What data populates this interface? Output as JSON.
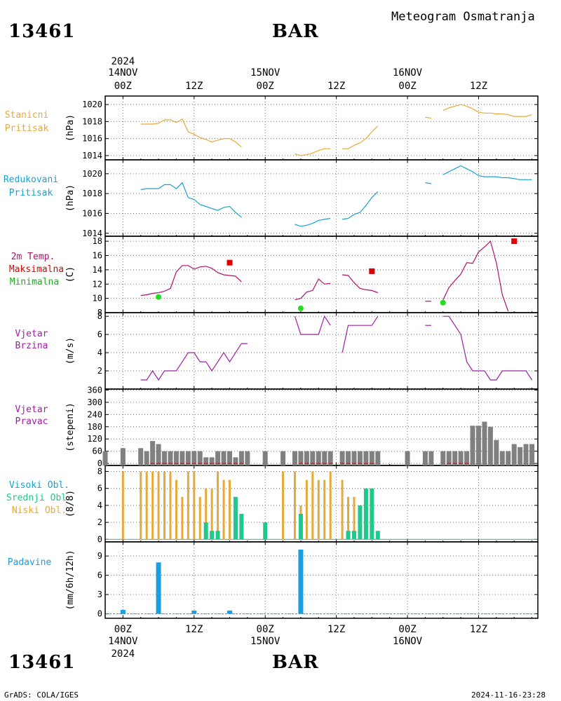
{
  "header": {
    "title": "Meteogram Osmatranja",
    "station_id": "13461",
    "station_name": "BAR",
    "footer_left": "GrADS: COLA/IGES",
    "footer_right": "2024-11-16-23:28"
  },
  "time_axis": {
    "year_label": "2024",
    "day_labels": [
      "14NOV",
      "15NOV",
      "16NOV"
    ],
    "hour_labels": [
      "00Z",
      "12Z",
      "00Z",
      "12Z",
      "00Z",
      "12Z"
    ]
  },
  "colors": {
    "staticni": "#e6a93a",
    "redukovani": "#1aa3d1",
    "temperature": "#b0106e",
    "max_marker": "#e00000",
    "min_marker": "#22dd22",
    "wind_speed": "#a020a0",
    "wind_dir": "#a020a0",
    "visoki": "#1aa3d1",
    "srednji": "#20c88a",
    "niski": "#e6a93a",
    "padavine": "#1a9fe0",
    "bars_gray": "#808080",
    "calm_dots": "#c03030"
  },
  "panels": {
    "p1": {
      "label1": "Stanicni",
      "label2": "Pritisak",
      "unit": "(hPa)",
      "ticks": [
        "1014",
        "1016",
        "1018",
        "1020"
      ]
    },
    "p2": {
      "label1": "Redukovani",
      "label2": "Pritisak",
      "unit": "(hPa)",
      "ticks": [
        "1014",
        "1016",
        "1018",
        "1020"
      ]
    },
    "p3": {
      "label1": "2m Temp.",
      "label2": "Maksimalna",
      "label3": "Minimalna",
      "unit": "(C)",
      "ticks": [
        "8",
        "10",
        "12",
        "14",
        "16",
        "18"
      ]
    },
    "p4": {
      "label1": "Vjetar",
      "label2": "Brzina",
      "unit": "(m/s)",
      "ticks": [
        "2",
        "4",
        "6",
        "8"
      ]
    },
    "p5": {
      "label1": "Vjetar",
      "label2": "Pravac",
      "unit": "(stepeni)",
      "ticks": [
        "0",
        "60",
        "120",
        "180",
        "240",
        "300",
        "360"
      ]
    },
    "p6": {
      "label1": "Visoki Obl.",
      "label2": "Srednji Obl.",
      "label3": "Niski Obl.",
      "unit": "(8/8)",
      "ticks": [
        "0",
        "2",
        "4",
        "6",
        "8"
      ]
    },
    "p7": {
      "label1": "Padavine",
      "unit": "(mm/6h/12h)",
      "ticks": [
        "0",
        "3",
        "6",
        "9"
      ]
    }
  },
  "chart_data": {
    "type": "line",
    "x_unit": "hours since 14NOV 00Z",
    "xlim": [
      -3,
      70
    ],
    "staticni_pritisak": [
      [
        [
          3,
          1017.7
        ],
        [
          4,
          1017.7
        ],
        [
          5,
          1017.7
        ],
        [
          6,
          1017.8
        ],
        [
          7,
          1018.2
        ],
        [
          8,
          1018.2
        ],
        [
          9,
          1017.9
        ],
        [
          10,
          1018.3
        ],
        [
          11,
          1016.8
        ],
        [
          12,
          1016.5
        ],
        [
          13,
          1016.1
        ],
        [
          14,
          1015.9
        ],
        [
          15,
          1015.6
        ],
        [
          16,
          1015.8
        ],
        [
          17,
          1016.0
        ],
        [
          18,
          1016.0
        ],
        [
          19,
          1015.6
        ],
        [
          20,
          1015.0
        ]
      ],
      [
        [
          29,
          1014.2
        ],
        [
          30,
          1014.0
        ],
        [
          31,
          1014.1
        ],
        [
          32,
          1014.3
        ],
        [
          33,
          1014.6
        ],
        [
          34,
          1014.8
        ],
        [
          35,
          1014.8
        ]
      ],
      [
        [
          37,
          1014.8
        ],
        [
          38,
          1014.8
        ],
        [
          39,
          1015.2
        ],
        [
          40,
          1015.5
        ],
        [
          41,
          1016.0
        ],
        [
          42,
          1016.8
        ],
        [
          43,
          1017.5
        ]
      ],
      [
        [
          51,
          1018.5
        ],
        [
          52,
          1018.4
        ]
      ],
      [
        [
          54,
          1019.3
        ],
        [
          55,
          1019.6
        ],
        [
          56,
          1019.8
        ],
        [
          57,
          1020.0
        ],
        [
          58,
          1019.8
        ],
        [
          59,
          1019.5
        ],
        [
          60,
          1019.1
        ],
        [
          61,
          1019.0
        ],
        [
          62,
          1019.0
        ],
        [
          63,
          1018.9
        ],
        [
          64,
          1018.9
        ],
        [
          65,
          1018.8
        ],
        [
          66,
          1018.6
        ],
        [
          67,
          1018.6
        ],
        [
          68,
          1018.6
        ],
        [
          69,
          1018.8
        ]
      ]
    ],
    "redukovani_pritisak": [
      [
        [
          3,
          1018.4
        ],
        [
          4,
          1018.5
        ],
        [
          5,
          1018.5
        ],
        [
          6,
          1018.5
        ],
        [
          7,
          1018.9
        ],
        [
          8,
          1018.9
        ],
        [
          9,
          1018.5
        ],
        [
          10,
          1019.1
        ],
        [
          11,
          1017.6
        ],
        [
          12,
          1017.4
        ],
        [
          13,
          1016.9
        ],
        [
          14,
          1016.7
        ],
        [
          15,
          1016.5
        ],
        [
          16,
          1016.3
        ],
        [
          17,
          1016.6
        ],
        [
          18,
          1016.7
        ],
        [
          19,
          1016.1
        ],
        [
          20,
          1015.6
        ]
      ],
      [
        [
          29,
          1014.9
        ],
        [
          30,
          1014.7
        ],
        [
          31,
          1014.8
        ],
        [
          32,
          1015.0
        ],
        [
          33,
          1015.3
        ],
        [
          34,
          1015.4
        ],
        [
          35,
          1015.5
        ]
      ],
      [
        [
          37,
          1015.4
        ],
        [
          38,
          1015.5
        ],
        [
          39,
          1015.9
        ],
        [
          40,
          1016.1
        ],
        [
          41,
          1016.8
        ],
        [
          42,
          1017.6
        ],
        [
          43,
          1018.2
        ]
      ],
      [
        [
          51,
          1019.1
        ],
        [
          52,
          1019.0
        ]
      ],
      [
        [
          54,
          1019.9
        ],
        [
          55,
          1020.2
        ],
        [
          56,
          1020.5
        ],
        [
          57,
          1020.8
        ],
        [
          58,
          1020.5
        ],
        [
          59,
          1020.2
        ],
        [
          60,
          1019.8
        ],
        [
          61,
          1019.7
        ],
        [
          62,
          1019.7
        ],
        [
          63,
          1019.7
        ],
        [
          64,
          1019.6
        ],
        [
          65,
          1019.6
        ],
        [
          66,
          1019.5
        ],
        [
          67,
          1019.4
        ],
        [
          68,
          1019.4
        ],
        [
          69,
          1019.4
        ]
      ]
    ],
    "temperatura_2m": [
      [
        [
          3,
          10.4
        ],
        [
          4,
          10.5
        ],
        [
          5,
          10.7
        ],
        [
          6,
          10.8
        ],
        [
          7,
          11.0
        ],
        [
          8,
          11.4
        ],
        [
          9,
          13.7
        ],
        [
          10,
          14.6
        ],
        [
          11,
          14.6
        ],
        [
          12,
          14.1
        ],
        [
          13,
          14.4
        ],
        [
          14,
          14.5
        ],
        [
          15,
          14.2
        ],
        [
          16,
          13.6
        ],
        [
          17,
          13.3
        ],
        [
          18,
          13.2
        ],
        [
          19,
          13.1
        ],
        [
          20,
          12.3
        ]
      ],
      [
        [
          29,
          9.8
        ],
        [
          30,
          10.0
        ],
        [
          31,
          10.9
        ],
        [
          32,
          11.1
        ],
        [
          33,
          12.7
        ],
        [
          34,
          12.0
        ],
        [
          35,
          12.1
        ]
      ],
      [
        [
          37,
          13.3
        ],
        [
          38,
          13.2
        ],
        [
          39,
          12.2
        ],
        [
          40,
          11.4
        ],
        [
          41,
          11.2
        ],
        [
          42,
          11.1
        ],
        [
          43,
          10.8
        ]
      ],
      [
        [
          51,
          9.6
        ],
        [
          52,
          9.6
        ]
      ],
      [
        [
          54,
          9.8
        ],
        [
          55,
          11.5
        ],
        [
          56,
          12.5
        ],
        [
          57,
          13.4
        ],
        [
          58,
          15.0
        ],
        [
          59,
          14.9
        ],
        [
          60,
          16.5
        ],
        [
          61,
          17.2
        ],
        [
          62,
          18.0
        ],
        [
          63,
          15.0
        ],
        [
          64,
          10.5
        ],
        [
          65,
          8.2
        ]
      ]
    ],
    "temp_maksimalna": [
      [
        18,
        15.0
      ],
      [
        42,
        13.8
      ],
      [
        66,
        18.0
      ]
    ],
    "temp_minimalna": [
      [
        6,
        10.2
      ],
      [
        30,
        8.6
      ],
      [
        54,
        9.4
      ]
    ],
    "vjetar_brzina": [
      [
        [
          3,
          1
        ],
        [
          4,
          1
        ],
        [
          5,
          2
        ],
        [
          6,
          1
        ],
        [
          7,
          2
        ],
        [
          8,
          2
        ],
        [
          9,
          2
        ],
        [
          10,
          3
        ],
        [
          11,
          4
        ],
        [
          12,
          4
        ],
        [
          13,
          3
        ],
        [
          14,
          3
        ],
        [
          15,
          2
        ],
        [
          16,
          3
        ],
        [
          17,
          4
        ],
        [
          18,
          3
        ],
        [
          19,
          4
        ],
        [
          20,
          5
        ],
        [
          21,
          5
        ]
      ],
      [
        [
          29,
          8
        ],
        [
          30,
          6
        ],
        [
          31,
          6
        ],
        [
          32,
          6
        ],
        [
          33,
          6
        ],
        [
          34,
          8
        ],
        [
          35,
          7
        ]
      ],
      [
        [
          37,
          4
        ],
        [
          38,
          7
        ],
        [
          39,
          7
        ],
        [
          40,
          7
        ],
        [
          41,
          7
        ],
        [
          42,
          7
        ],
        [
          43,
          8
        ]
      ],
      [
        [
          51,
          7
        ],
        [
          52,
          7
        ]
      ],
      [
        [
          54,
          8
        ],
        [
          55,
          8
        ],
        [
          56,
          7
        ],
        [
          57,
          6
        ],
        [
          58,
          3
        ],
        [
          59,
          2
        ],
        [
          60,
          2
        ],
        [
          61,
          2
        ],
        [
          62,
          1
        ],
        [
          63,
          1
        ],
        [
          64,
          2
        ],
        [
          65,
          2
        ],
        [
          66,
          2
        ],
        [
          67,
          2
        ],
        [
          68,
          2
        ],
        [
          69,
          1
        ]
      ]
    ],
    "vjetar_pravac": [
      [
        -3,
        60
      ],
      [
        0,
        75
      ],
      [
        3,
        75
      ],
      [
        4,
        60
      ],
      [
        5,
        110
      ],
      [
        6,
        95
      ],
      [
        7,
        60
      ],
      [
        8,
        60
      ],
      [
        9,
        60
      ],
      [
        10,
        60
      ],
      [
        11,
        60
      ],
      [
        12,
        60
      ],
      [
        13,
        60
      ],
      [
        14,
        30
      ],
      [
        15,
        30
      ],
      [
        16,
        60
      ],
      [
        17,
        60
      ],
      [
        18,
        60
      ],
      [
        19,
        30
      ],
      [
        20,
        60
      ],
      [
        21,
        60
      ],
      [
        24,
        60
      ],
      [
        27,
        60
      ],
      [
        29,
        60
      ],
      [
        30,
        60
      ],
      [
        31,
        60
      ],
      [
        32,
        60
      ],
      [
        33,
        60
      ],
      [
        34,
        60
      ],
      [
        35,
        60
      ],
      [
        37,
        60
      ],
      [
        38,
        60
      ],
      [
        39,
        60
      ],
      [
        40,
        60
      ],
      [
        41,
        60
      ],
      [
        42,
        60
      ],
      [
        43,
        60
      ],
      [
        48,
        60
      ],
      [
        51,
        60
      ],
      [
        52,
        60
      ],
      [
        54,
        60
      ],
      [
        55,
        60
      ],
      [
        56,
        60
      ],
      [
        57,
        60
      ],
      [
        58,
        60
      ],
      [
        59,
        185
      ],
      [
        60,
        185
      ],
      [
        61,
        205
      ],
      [
        62,
        180
      ],
      [
        63,
        115
      ],
      [
        64,
        60
      ],
      [
        65,
        60
      ],
      [
        66,
        95
      ],
      [
        67,
        80
      ],
      [
        68,
        95
      ],
      [
        69,
        95
      ]
    ],
    "vjetar_calm": [
      [
        5,
        0
      ],
      [
        6,
        0
      ],
      [
        7,
        0
      ],
      [
        8,
        0
      ],
      [
        9,
        0
      ],
      [
        10,
        0
      ],
      [
        11,
        0
      ],
      [
        12,
        0
      ],
      [
        13,
        0
      ],
      [
        14,
        0
      ],
      [
        15,
        0
      ],
      [
        16,
        0
      ],
      [
        17,
        0
      ],
      [
        18,
        0
      ],
      [
        19,
        0
      ],
      [
        20,
        0
      ],
      [
        30,
        0
      ],
      [
        31,
        0
      ],
      [
        32,
        0
      ],
      [
        33,
        0
      ],
      [
        34,
        0
      ],
      [
        35,
        0
      ],
      [
        37,
        0
      ],
      [
        38,
        0
      ],
      [
        39,
        0
      ],
      [
        40,
        0
      ],
      [
        41,
        0
      ],
      [
        42,
        0
      ],
      [
        55,
        0
      ],
      [
        56,
        0
      ],
      [
        57,
        0
      ],
      [
        58,
        0
      ]
    ],
    "niski_oblaci": [
      [
        0,
        8
      ],
      [
        3,
        8
      ],
      [
        4,
        8
      ],
      [
        5,
        8
      ],
      [
        6,
        8
      ],
      [
        7,
        8
      ],
      [
        8,
        8
      ],
      [
        9,
        7
      ],
      [
        10,
        5
      ],
      [
        11,
        8
      ],
      [
        12,
        8
      ],
      [
        13,
        5
      ],
      [
        14,
        6
      ],
      [
        15,
        6
      ],
      [
        16,
        8
      ],
      [
        17,
        7
      ],
      [
        18,
        7
      ],
      [
        21,
        0
      ],
      [
        24,
        0
      ],
      [
        27,
        8
      ],
      [
        29,
        8
      ],
      [
        30,
        4
      ],
      [
        31,
        7
      ],
      [
        32,
        8
      ],
      [
        33,
        7
      ],
      [
        34,
        7
      ],
      [
        35,
        8
      ],
      [
        37,
        7
      ],
      [
        38,
        5
      ],
      [
        39,
        5
      ]
    ],
    "srednji_oblaci": [
      [
        14,
        2
      ],
      [
        15,
        1
      ],
      [
        16,
        1
      ],
      [
        19,
        5
      ],
      [
        20,
        3
      ],
      [
        24,
        2
      ],
      [
        30,
        3
      ],
      [
        38,
        1
      ],
      [
        39,
        1
      ],
      [
        40,
        4
      ],
      [
        41,
        6
      ],
      [
        42,
        6
      ],
      [
        43,
        1
      ]
    ],
    "visoki_oblaci": [],
    "padavine": [
      [
        0,
        0.6
      ],
      [
        6,
        8.0
      ],
      [
        12,
        0.5
      ],
      [
        18,
        0.5
      ],
      [
        30,
        10.0
      ]
    ]
  }
}
